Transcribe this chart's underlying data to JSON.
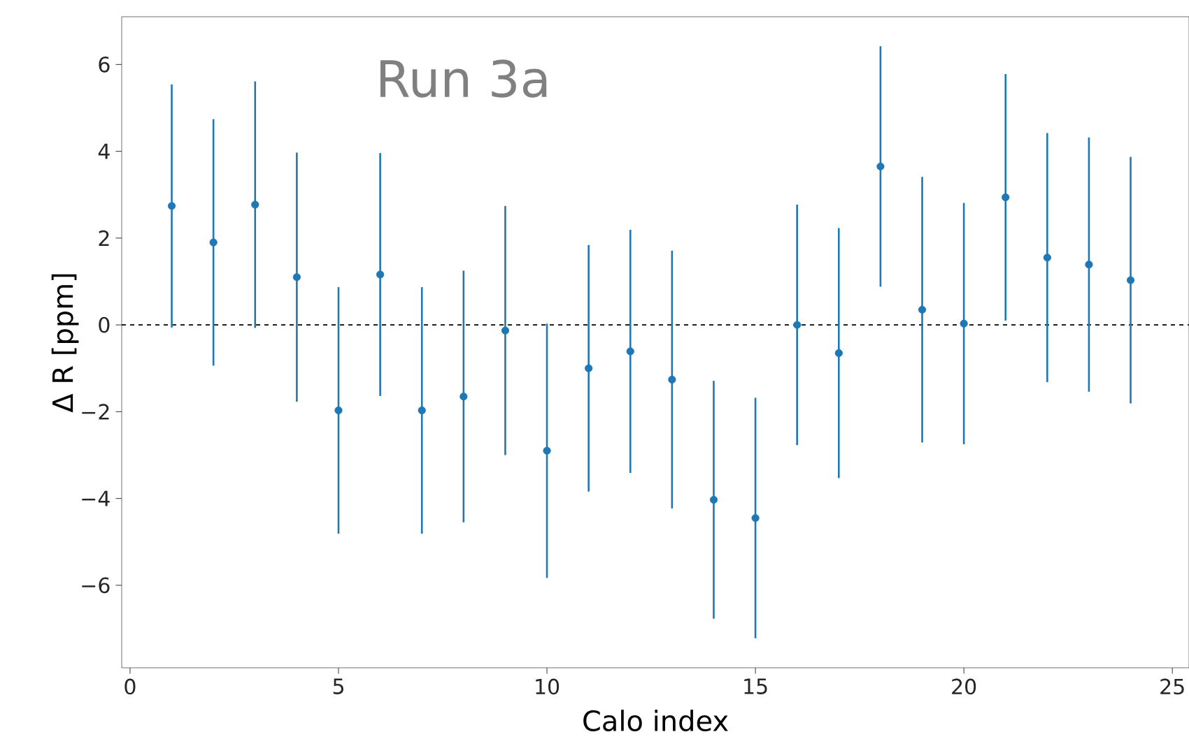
{
  "chart_data": {
    "type": "scatter",
    "xlabel": "Calo index",
    "ylabel": "Δ R [ppm]",
    "annotations": [
      "Run 3a"
    ],
    "x": [
      1,
      2,
      3,
      4,
      5,
      6,
      7,
      8,
      9,
      10,
      11,
      12,
      13,
      14,
      15,
      16,
      17,
      18,
      19,
      20,
      21,
      22,
      23,
      24
    ],
    "series": [
      {
        "color": "#1f77b4",
        "values": [
          2.74,
          1.9,
          2.77,
          1.1,
          -1.97,
          1.16,
          -1.97,
          -1.65,
          -0.13,
          -2.9,
          -1.0,
          -0.61,
          -1.26,
          -4.03,
          -4.45,
          0.0,
          -0.65,
          3.65,
          0.35,
          0.03,
          2.94,
          1.55,
          1.39,
          1.03
        ],
        "errors": [
          2.8,
          2.84,
          2.84,
          2.87,
          2.84,
          2.8,
          2.84,
          2.9,
          2.87,
          2.93,
          2.84,
          2.8,
          2.97,
          2.74,
          2.77,
          2.77,
          2.88,
          2.77,
          3.06,
          2.78,
          2.84,
          2.87,
          2.93,
          2.84
        ]
      }
    ],
    "marker": "circle",
    "xlim": [
      -0.2,
      25.4
    ],
    "ylim": [
      -7.9,
      7.1
    ],
    "xticks": [
      0,
      5,
      10,
      15,
      20,
      25
    ],
    "yticks": [
      {
        "value": -6,
        "label": "−6"
      },
      {
        "value": -4,
        "label": "−4"
      },
      {
        "value": -2,
        "label": "−2"
      },
      0,
      2,
      4,
      6
    ],
    "ref_lines": [
      {
        "axis": "y",
        "value": 0,
        "color": "#000000",
        "line_style": "dashed"
      }
    ],
    "grid": false
  }
}
